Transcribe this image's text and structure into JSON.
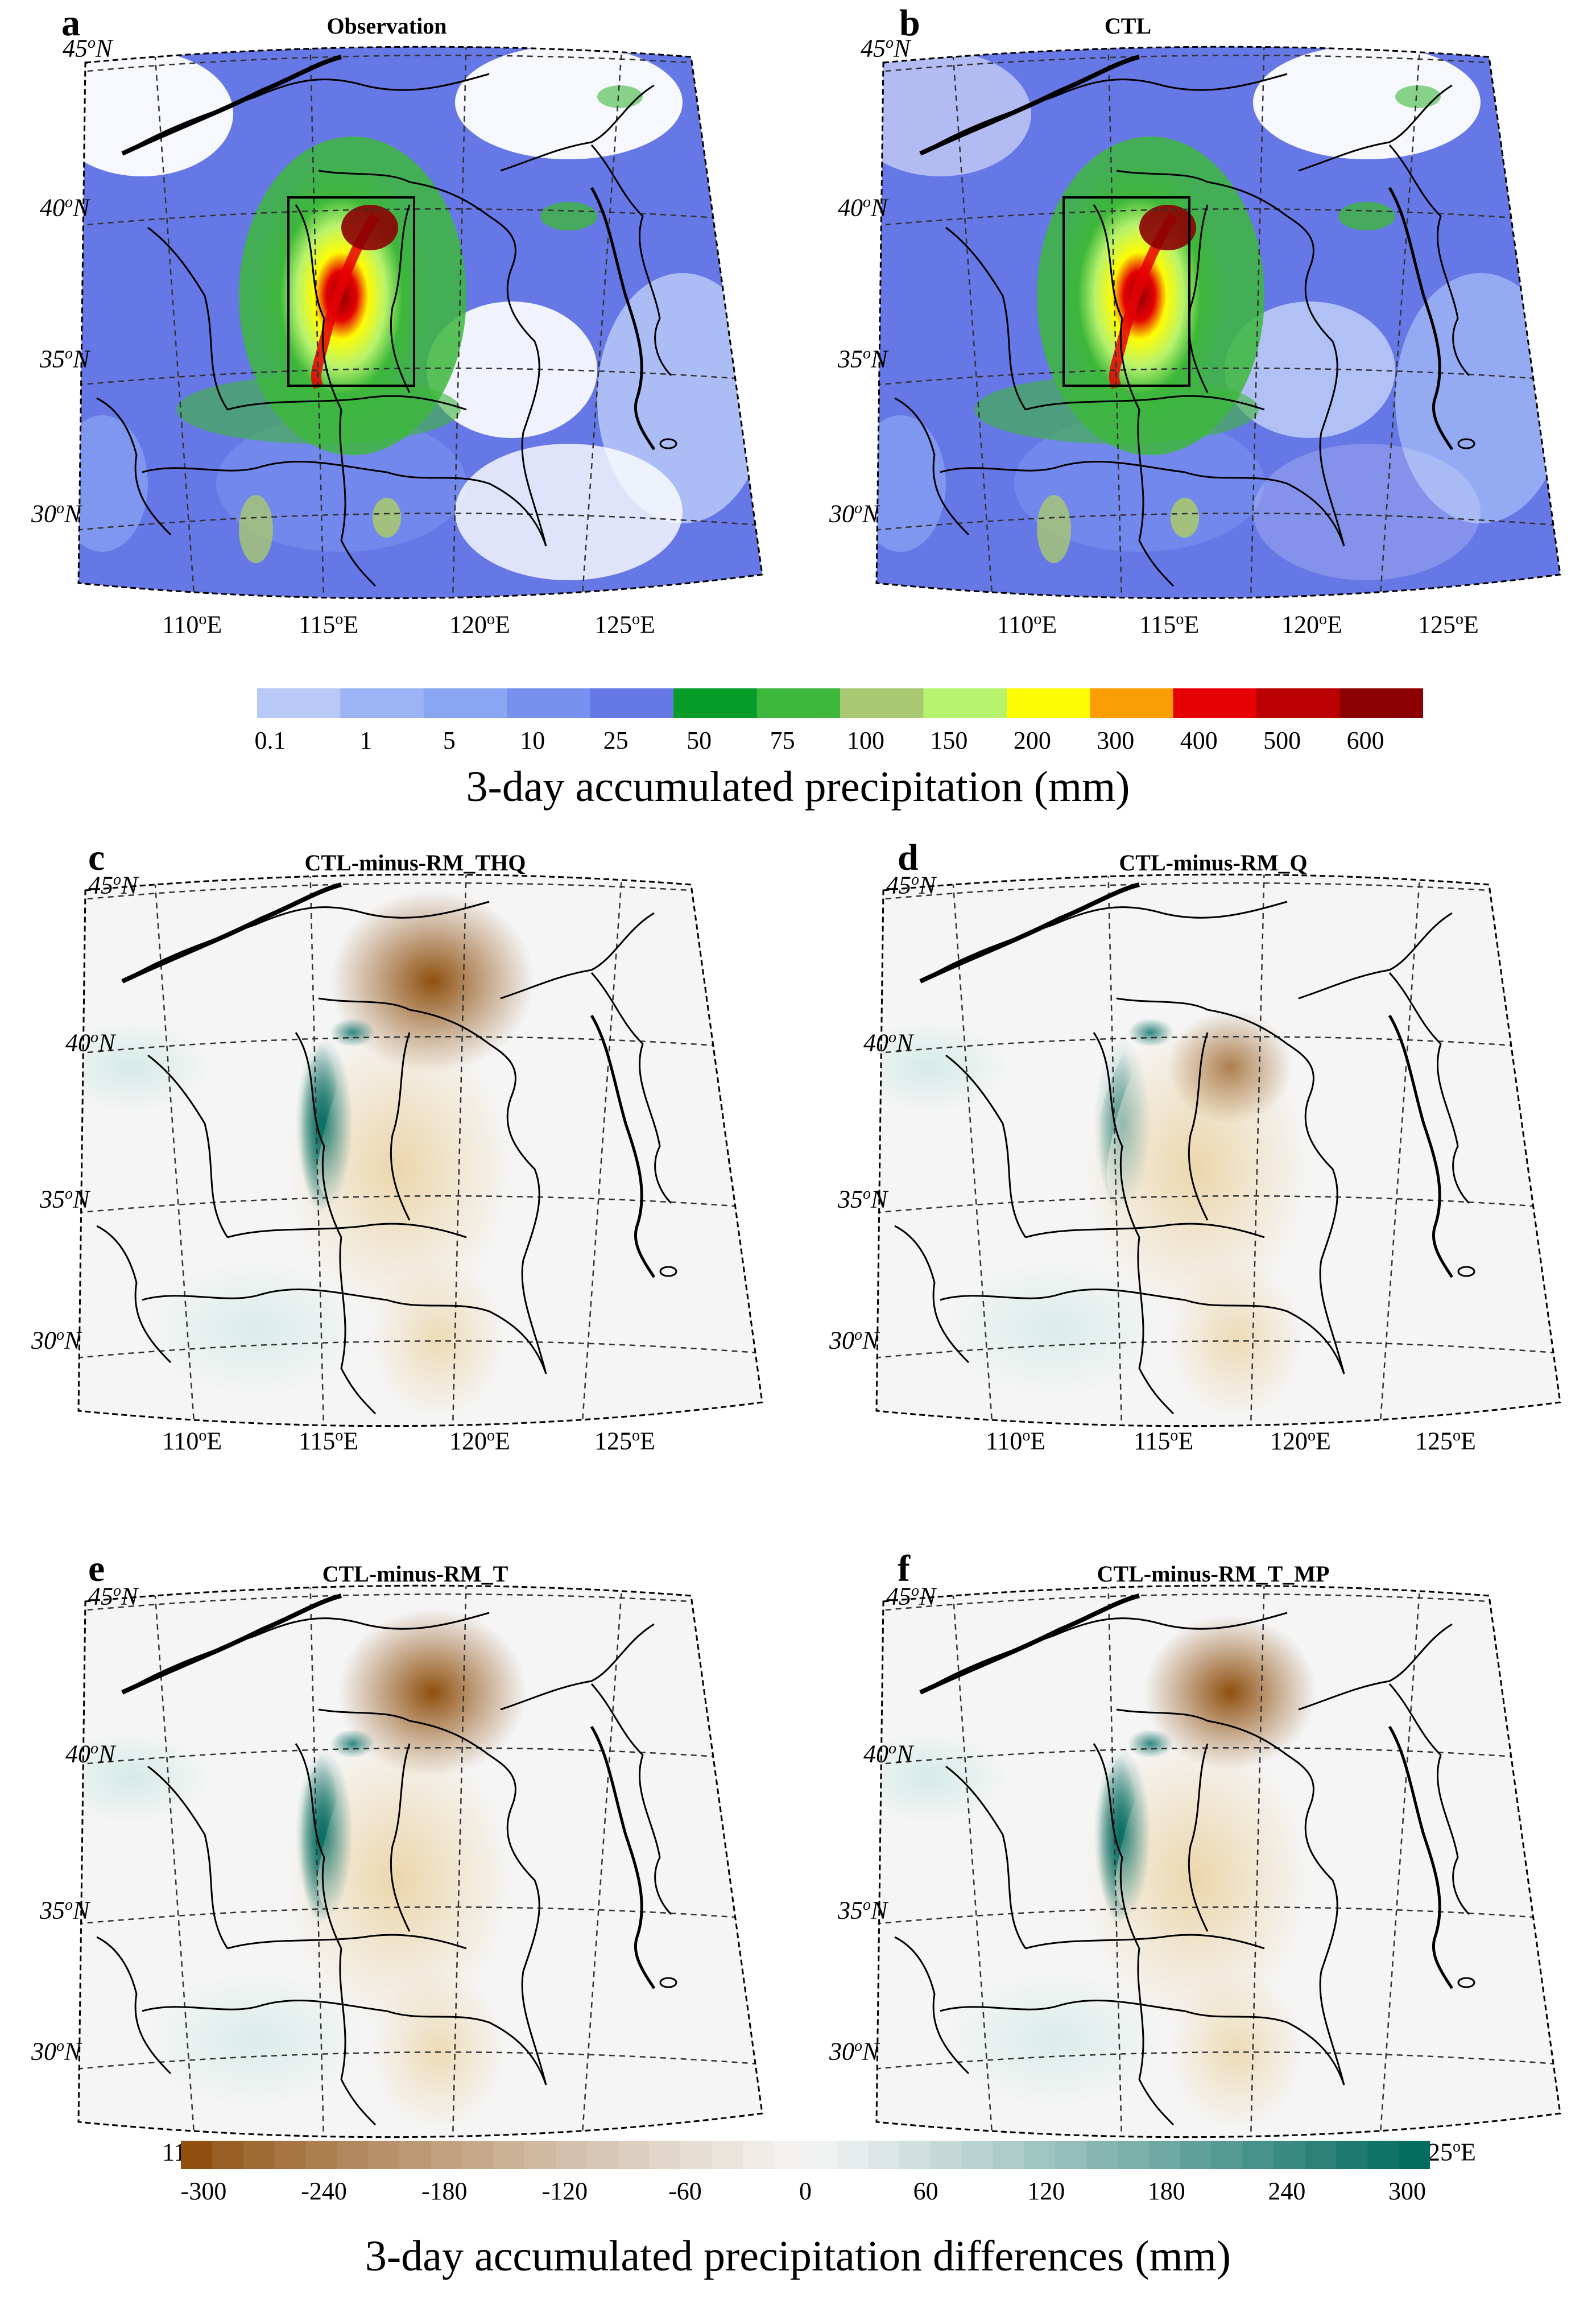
{
  "panels": [
    {
      "letter": "a",
      "title": "Observation",
      "kind": "precip",
      "box": true
    },
    {
      "letter": "b",
      "title": "CTL",
      "kind": "precip",
      "box": true
    },
    {
      "letter": "c",
      "title": "CTL-minus-RM_THQ",
      "kind": "diff",
      "box": false
    },
    {
      "letter": "d",
      "title": "CTL-minus-RM_Q",
      "kind": "diff",
      "box": false
    },
    {
      "letter": "e",
      "title": "CTL-minus-RM_T",
      "kind": "diff",
      "box": false
    },
    {
      "letter": "f",
      "title": "CTL-minus-RM_T_MP",
      "kind": "diff",
      "box": false
    }
  ],
  "lat_labels": [
    "45",
    "40",
    "35",
    "30"
  ],
  "lat_suffix": "N",
  "lon_labels": [
    "110",
    "115",
    "120",
    "125"
  ],
  "lon_suffix": "E",
  "degree_mark": "o",
  "precip_colorbar": {
    "title": "3-day accumulated precipitation (mm)",
    "ticks": [
      "0.1",
      "1",
      "5",
      "10",
      "25",
      "50",
      "75",
      "100",
      "150",
      "200",
      "300",
      "400",
      "500",
      "600"
    ],
    "colors": [
      "#b9c9f7",
      "#9cb3f4",
      "#8aa5f2",
      "#7890ee",
      "#6677e6",
      "#079c29",
      "#3db73b",
      "#a9c872",
      "#b8f36d",
      "#fefc05",
      "#fb9e05",
      "#e50003",
      "#bb0003",
      "#8c0003"
    ]
  },
  "diff_colorbar": {
    "title": "3-day accumulated precipitation differences (mm)",
    "ticks": [
      "-300",
      "-240",
      "-180",
      "-120",
      "-60",
      "0",
      "60",
      "120",
      "180",
      "240",
      "300"
    ],
    "neg_color": "#8f5010",
    "mid_color": "#f5f5f5",
    "pos_color": "#036b60"
  }
}
